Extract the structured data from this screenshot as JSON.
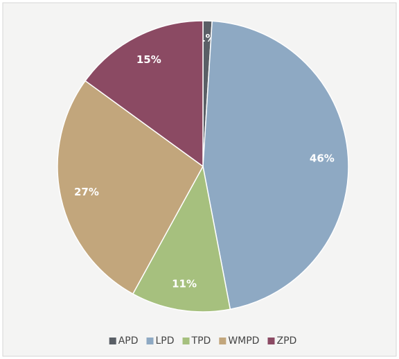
{
  "chart_data": {
    "type": "pie",
    "categories": [
      "APD",
      "LPD",
      "TPD",
      "WMPD",
      "ZPD"
    ],
    "values": [
      1,
      46,
      11,
      27,
      15
    ],
    "value_labels": [
      "1%",
      "46%",
      "11%",
      "27%",
      "15%"
    ],
    "colors": [
      "#5a5f66",
      "#8ea9c3",
      "#a6c07e",
      "#c2a67c",
      "#8b4a63"
    ],
    "legend": "bottom"
  }
}
